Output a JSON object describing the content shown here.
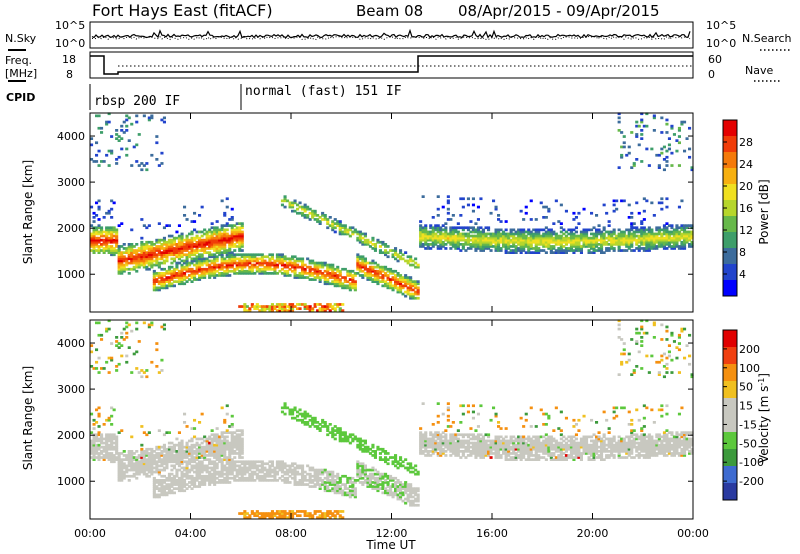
{
  "header": {
    "title": "Fort Hays East (fitACF)",
    "beam": "Beam 08",
    "date_range": "08/Apr/2015 - 09/Apr/2015"
  },
  "noise_panel": {
    "left_label": "N.Sky",
    "right_label": "N.Search",
    "left_ticks": [
      "10^5",
      "10^0"
    ],
    "right_ticks": [
      "10^5",
      "10^0"
    ]
  },
  "freq_panel": {
    "left_label_1": "Freq.",
    "left_label_2": "[MHz]",
    "left_ticks": [
      "18",
      "8"
    ],
    "right_ticks": [
      "60",
      "0"
    ],
    "right_label": "Nave"
  },
  "cpid": {
    "label": "CPID",
    "segments": [
      {
        "start_h": 0,
        "end_h": 6,
        "text": "rbsp 200 IF"
      },
      {
        "start_h": 6,
        "end_h": 24,
        "text": "normal (fast) 151 IF"
      }
    ]
  },
  "chart_data": [
    {
      "type": "heatmap",
      "name": "power",
      "ylabel": "Slant Range [km]",
      "xlabel": "Time UT",
      "xlim": [
        0,
        24
      ],
      "ylim": [
        180,
        4500
      ],
      "y_ticks": [
        1000,
        2000,
        3000,
        4000
      ],
      "x_tick_labels": [
        "00:00",
        "04:00",
        "08:00",
        "12:00",
        "16:00",
        "20:00",
        "00:00"
      ],
      "colorbar": {
        "label": "Power [dB]",
        "ticks": [
          "28",
          "24",
          "20",
          "16",
          "12",
          "8",
          "4"
        ],
        "colors": [
          "#0000ff",
          "#2244cc",
          "#3c6c9c",
          "#3e9e6a",
          "#66b84a",
          "#b6d62c",
          "#f0e020",
          "#f7b010",
          "#f57a0a",
          "#f03c08",
          "#e40000"
        ],
        "range": [
          0,
          32
        ]
      }
    },
    {
      "type": "heatmap",
      "name": "velocity",
      "ylabel": "Slant Range [km]",
      "xlabel": "Time UT",
      "xlim": [
        0,
        24
      ],
      "ylim": [
        180,
        4500
      ],
      "y_ticks": [
        1000,
        2000,
        3000,
        4000
      ],
      "x_tick_labels": [
        "00:00",
        "04:00",
        "08:00",
        "12:00",
        "16:00",
        "20:00",
        "00:00"
      ],
      "colorbar": {
        "label": "Velocity [m s^-1]",
        "ticks": [
          "200",
          "100",
          "50",
          "15",
          "-15",
          "-50",
          "-100",
          "-200"
        ],
        "colors": [
          "#2a3aa0",
          "#3e6bd0",
          "#3c9a3c",
          "#5cc83c",
          "#c8c8c0",
          "#c8c8c0",
          "#f0c020",
          "#f59010",
          "#f04010",
          "#e00000"
        ],
        "range": [
          -250,
          250
        ]
      }
    }
  ],
  "x_axis_title": "Time UT"
}
